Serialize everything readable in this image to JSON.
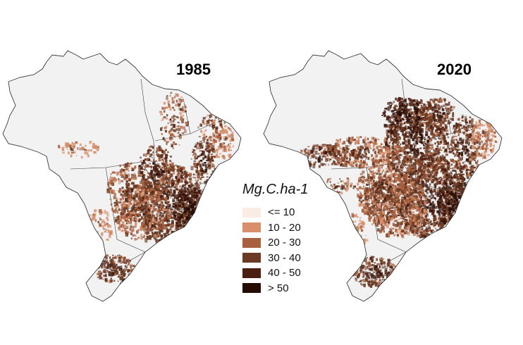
{
  "maps": [
    {
      "year": "1985"
    },
    {
      "year": "2020"
    }
  ],
  "legend": {
    "title": "Mg.C.ha-1",
    "items": [
      {
        "label": "<= 10",
        "color": "#fbece3"
      },
      {
        "label": "10 - 20",
        "color": "#d8906c"
      },
      {
        "label": "20 - 30",
        "color": "#a9603e"
      },
      {
        "label": "30 - 40",
        "color": "#6b3a22"
      },
      {
        "label": "40 - 50",
        "color": "#4a1f12"
      },
      {
        "label": "> 50",
        "color": "#260b04"
      }
    ]
  },
  "colors": {
    "land": "#f2f2f2",
    "border": "#3a3a3a"
  }
}
